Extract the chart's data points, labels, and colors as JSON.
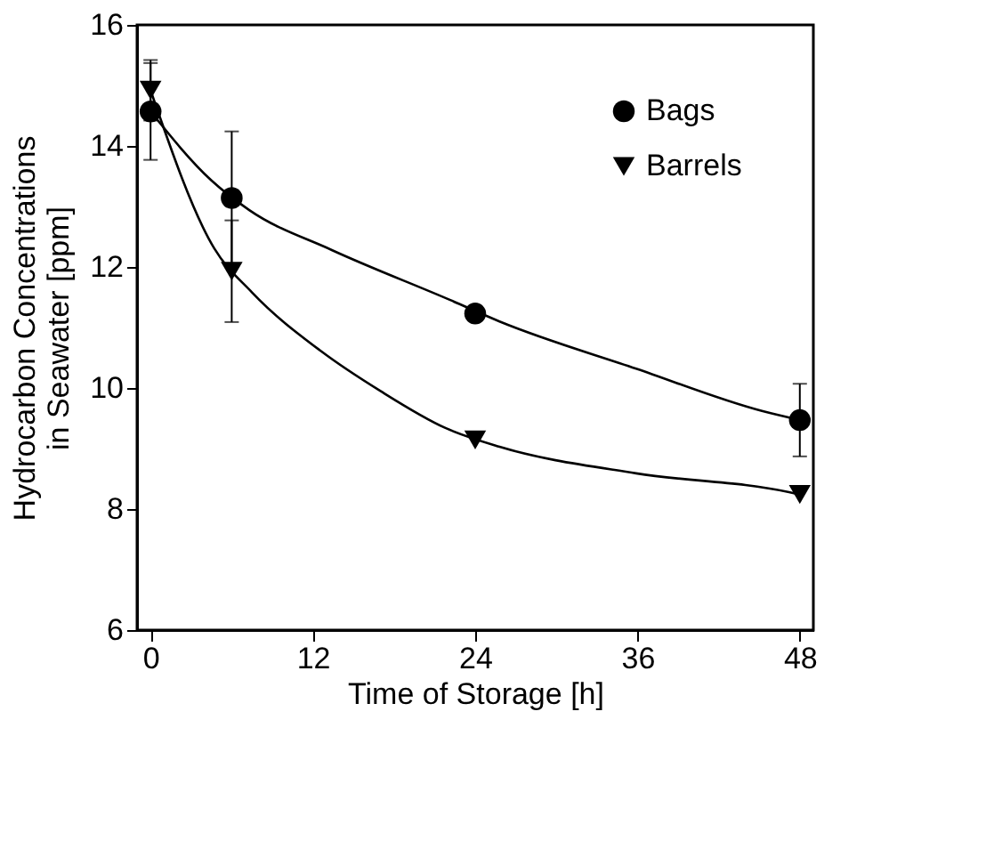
{
  "chart_data": {
    "type": "scatter",
    "xlabel": "Time of Storage [h]",
    "ylabel": "Hydrocarbon Concentrations\nin Seawater [ppm]",
    "x": [
      0,
      6,
      24,
      48
    ],
    "xlim": [
      -1,
      49
    ],
    "xticks": [
      0,
      12,
      24,
      36,
      48
    ],
    "ylim": [
      6,
      16
    ],
    "yticks": [
      6,
      8,
      10,
      12,
      14,
      16
    ],
    "grid": false,
    "legend": "top right",
    "series": [
      {
        "name": "Bags",
        "marker": "circle",
        "color": "#000000",
        "values": [
          14.57,
          13.14,
          11.23,
          9.47
        ],
        "errors": [
          0.8,
          1.1,
          null,
          0.6
        ]
      },
      {
        "name": "Barrels",
        "marker": "triangle",
        "color": "#000000",
        "values": [
          14.92,
          11.93,
          9.14,
          8.24
        ],
        "errors": [
          0.5,
          0.84,
          null,
          null
        ]
      },
      {
        "type": "line",
        "color": "#000000",
        "marker": "none",
        "x": [
          0,
          4.5,
          7.3,
          13.4,
          22.2,
          25.8,
          35.9,
          45.2,
          48
        ],
        "values": [
          14.57,
          13.43,
          12.94,
          12.28,
          11.45,
          11.1,
          10.32,
          9.62,
          9.47
        ]
      },
      {
        "type": "line",
        "color": "#000000",
        "marker": "none",
        "x": [
          0,
          4.7,
          7.5,
          12.6,
          17,
          21.8,
          25.8,
          35.9,
          47.2,
          48
        ],
        "values": [
          14.92,
          12.31,
          11.58,
          10.61,
          9.95,
          9.34,
          9.03,
          8.59,
          8.28,
          8.24
        ]
      }
    ]
  }
}
